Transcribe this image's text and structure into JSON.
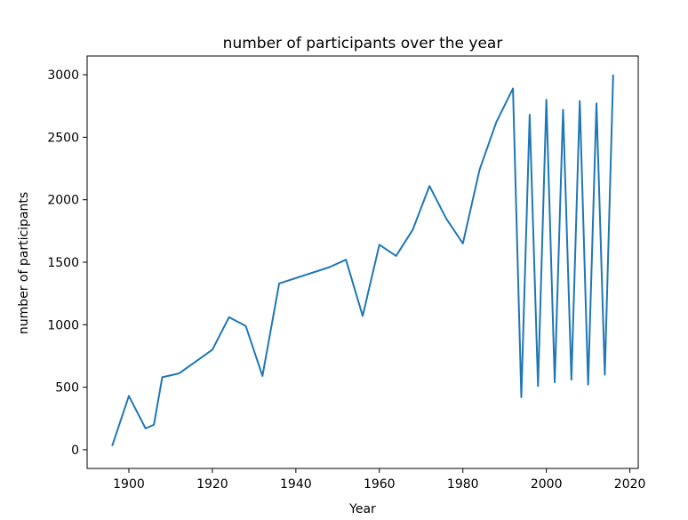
{
  "chart_data": {
    "type": "line",
    "title": "number of participants over the year",
    "xlabel": "Year",
    "ylabel": "number of participants",
    "xlim": [
      1890,
      2022
    ],
    "ylim": [
      -150,
      3150
    ],
    "xticks": [
      1900,
      1920,
      1940,
      1960,
      1980,
      2000,
      2020
    ],
    "yticks": [
      0,
      500,
      1000,
      1500,
      2000,
      2500,
      3000
    ],
    "grid": false,
    "line_color": "#1f77b4",
    "series": [
      {
        "x": [
          1896,
          1900,
          1904,
          1906,
          1908,
          1912,
          1920,
          1924,
          1928,
          1932,
          1936,
          1948,
          1952,
          1956,
          1960,
          1964,
          1968,
          1972,
          1976,
          1980,
          1984,
          1988,
          1992,
          1994,
          1996,
          1998,
          2000,
          2002,
          2004,
          2006,
          2008,
          2010,
          2012,
          2014,
          2016
        ],
        "values": [
          30,
          430,
          170,
          200,
          580,
          610,
          800,
          1060,
          990,
          590,
          1330,
          1460,
          1520,
          1070,
          1640,
          1550,
          1760,
          2110,
          1850,
          1650,
          2240,
          2620,
          2890,
          420,
          2680,
          510,
          2800,
          540,
          2720,
          560,
          2790,
          520,
          2770,
          600,
          3000
        ]
      }
    ]
  }
}
